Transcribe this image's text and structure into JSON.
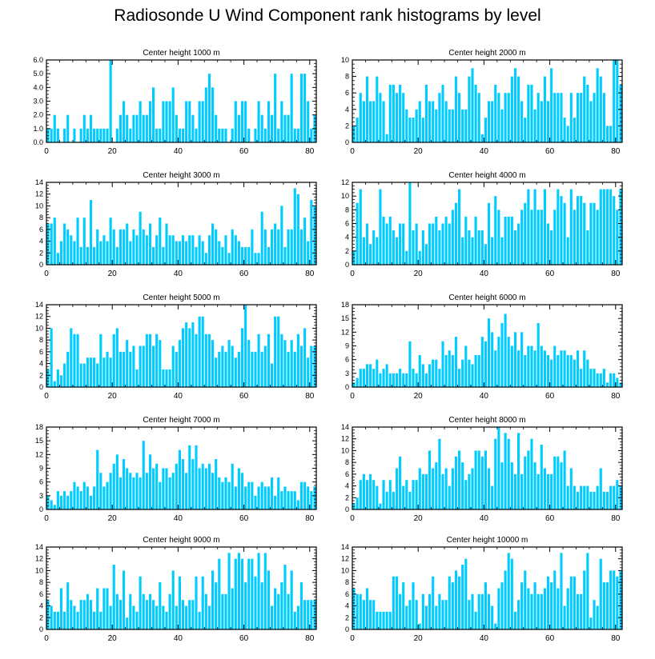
{
  "title": "Radiosonde U Wind Component rank histograms by level",
  "colors": {
    "bar": "#00ccff",
    "axis": "#000000",
    "background": "#ffffff"
  },
  "chart_data": [
    {
      "type": "bar",
      "title": "Center height 1000 m",
      "xlim": [
        0,
        82
      ],
      "ylim": [
        0,
        6
      ],
      "yticks": [
        "0.0",
        "1.0",
        "2.0",
        "3.0",
        "4.0",
        "5.0",
        "6.0"
      ],
      "xticks": [
        "0",
        "20",
        "40",
        "60",
        "80"
      ],
      "values": [
        1,
        1,
        2,
        1,
        0,
        1,
        2,
        0,
        1,
        0,
        1,
        2,
        1,
        2,
        1,
        1,
        1,
        1,
        1,
        6,
        0,
        1,
        2,
        3,
        2,
        1,
        2,
        2,
        3,
        2,
        2,
        3,
        4,
        1,
        1,
        3,
        3,
        3,
        4,
        2,
        1,
        1,
        3,
        3,
        2,
        1,
        3,
        3,
        4,
        5,
        4,
        2,
        1,
        1,
        1,
        0,
        1,
        3,
        2,
        3,
        3,
        1,
        0,
        1,
        3,
        2,
        1,
        3,
        2,
        5,
        1,
        3,
        2,
        2,
        5,
        1,
        1,
        5,
        5,
        3,
        1,
        2
      ]
    },
    {
      "type": "bar",
      "title": "Center height 2000 m",
      "xlim": [
        0,
        82
      ],
      "ylim": [
        0,
        10
      ],
      "yticks": [
        "0",
        "2",
        "4",
        "6",
        "8",
        "10"
      ],
      "xticks": [
        "0",
        "20",
        "40",
        "60",
        "80"
      ],
      "values": [
        2,
        3,
        6,
        5,
        8,
        5,
        5,
        8,
        6,
        5,
        1,
        7,
        7,
        6,
        7,
        6,
        4,
        3,
        3,
        4,
        5,
        3,
        7,
        5,
        5,
        4,
        6,
        7,
        5,
        4,
        4,
        8,
        6,
        4,
        4,
        8,
        9,
        7,
        6,
        1,
        3,
        5,
        5,
        7,
        6,
        4,
        6,
        6,
        8,
        9,
        8,
        5,
        3,
        7,
        7,
        4,
        6,
        5,
        8,
        5,
        9,
        6,
        6,
        6,
        3,
        2,
        6,
        3,
        6,
        6,
        8,
        7,
        5,
        6,
        9,
        8,
        6,
        2,
        2,
        10,
        10,
        7
      ]
    },
    {
      "type": "bar",
      "title": "Center height 3000 m",
      "xlim": [
        0,
        82
      ],
      "ylim": [
        0,
        14
      ],
      "yticks": [
        "0",
        "2",
        "4",
        "6",
        "8",
        "10",
        "12",
        "14"
      ],
      "xticks": [
        "0",
        "20",
        "40",
        "60",
        "80"
      ],
      "values": [
        7,
        7,
        8,
        2,
        4,
        7,
        6,
        5,
        4,
        8,
        3,
        8,
        3,
        11,
        3,
        6,
        4,
        5,
        4,
        8,
        6,
        3,
        6,
        6,
        7,
        4,
        6,
        5,
        9,
        6,
        5,
        7,
        3,
        5,
        8,
        3,
        7,
        5,
        5,
        4,
        4,
        5,
        4,
        5,
        5,
        3,
        5,
        4,
        2,
        5,
        7,
        6,
        4,
        3,
        5,
        2,
        6,
        5,
        4,
        3,
        3,
        3,
        6,
        2,
        2,
        9,
        6,
        3,
        6,
        7,
        6,
        10,
        3,
        6,
        6,
        13,
        12,
        6,
        8,
        4,
        11,
        10
      ]
    },
    {
      "type": "bar",
      "title": "Center height 4000 m",
      "xlim": [
        0,
        82
      ],
      "ylim": [
        0,
        12
      ],
      "yticks": [
        "0",
        "2",
        "4",
        "6",
        "8",
        "10",
        "12"
      ],
      "xticks": [
        "0",
        "20",
        "40",
        "60",
        "80"
      ],
      "values": [
        2,
        9,
        11,
        4,
        6,
        3,
        5,
        4,
        11,
        7,
        6,
        7,
        5,
        4,
        6,
        6,
        2,
        12,
        5,
        6,
        2,
        5,
        3,
        6,
        6,
        7,
        5,
        6,
        7,
        6,
        8,
        9,
        11,
        4,
        7,
        5,
        4,
        7,
        5,
        5,
        3,
        9,
        4,
        10,
        8,
        4,
        7,
        7,
        7,
        5,
        6,
        8,
        9,
        11,
        8,
        11,
        8,
        8,
        11,
        6,
        5,
        8,
        11,
        10,
        9,
        4,
        11,
        8,
        10,
        10,
        9,
        5,
        9,
        9,
        8,
        11,
        11,
        11,
        11,
        10,
        8,
        11
      ]
    },
    {
      "type": "bar",
      "title": "Center height 5000 m",
      "xlim": [
        0,
        82
      ],
      "ylim": [
        0,
        14
      ],
      "yticks": [
        "0",
        "2",
        "4",
        "6",
        "8",
        "10",
        "12",
        "14"
      ],
      "xticks": [
        "0",
        "20",
        "40",
        "60",
        "80"
      ],
      "values": [
        3,
        10,
        1,
        3,
        2,
        4,
        6,
        10,
        9,
        9,
        4,
        4,
        5,
        5,
        5,
        4,
        9,
        5,
        6,
        5,
        9,
        10,
        6,
        6,
        8,
        6,
        7,
        3,
        7,
        7,
        9,
        9,
        7,
        9,
        8,
        3,
        3,
        3,
        7,
        6,
        8,
        10,
        11,
        10,
        11,
        9,
        12,
        12,
        9,
        9,
        8,
        5,
        6,
        7,
        6,
        8,
        7,
        5,
        6,
        10,
        14,
        8,
        6,
        6,
        9,
        6,
        7,
        9,
        4,
        12,
        12,
        9,
        8,
        6,
        8,
        6,
        9,
        7,
        10,
        5,
        7,
        7
      ]
    },
    {
      "type": "bar",
      "title": "Center height 6000 m",
      "xlim": [
        0,
        82
      ],
      "ylim": [
        0,
        18
      ],
      "yticks": [
        "0",
        "3",
        "6",
        "9",
        "12",
        "15",
        "18"
      ],
      "xticks": [
        "0",
        "20",
        "40",
        "60",
        "80"
      ],
      "values": [
        1,
        2,
        4,
        4,
        5,
        5,
        4,
        6,
        3,
        4,
        5,
        3,
        3,
        3,
        4,
        3,
        3,
        10,
        4,
        3,
        7,
        5,
        3,
        5,
        6,
        6,
        4,
        10,
        7,
        8,
        7,
        11,
        4,
        6,
        9,
        6,
        5,
        7,
        7,
        11,
        10,
        15,
        12,
        8,
        11,
        14,
        16,
        11,
        9,
        12,
        8,
        12,
        7,
        9,
        9,
        8,
        14,
        9,
        8,
        7,
        6,
        9,
        7,
        8,
        8,
        7,
        7,
        6,
        8,
        4,
        8,
        6,
        4,
        4,
        3,
        3,
        4,
        1,
        3,
        3,
        2,
        1
      ]
    },
    {
      "type": "bar",
      "title": "Center height 7000 m",
      "xlim": [
        0,
        82
      ],
      "ylim": [
        0,
        18
      ],
      "yticks": [
        "0",
        "3",
        "6",
        "9",
        "12",
        "15",
        "18"
      ],
      "xticks": [
        "0",
        "20",
        "40",
        "60",
        "80"
      ],
      "values": [
        3,
        2,
        1,
        4,
        3,
        4,
        3,
        4,
        6,
        5,
        4,
        6,
        5,
        3,
        5,
        13,
        8,
        5,
        6,
        8,
        10,
        12,
        7,
        11,
        9,
        8,
        7,
        8,
        7,
        15,
        8,
        12,
        9,
        10,
        6,
        9,
        9,
        7,
        8,
        10,
        13,
        11,
        8,
        14,
        11,
        14,
        9,
        10,
        9,
        10,
        8,
        11,
        7,
        6,
        7,
        6,
        10,
        5,
        9,
        8,
        5,
        6,
        6,
        3,
        5,
        6,
        5,
        5,
        7,
        3,
        7,
        4,
        5,
        4,
        4,
        4,
        2,
        6,
        6,
        5,
        4,
        5
      ]
    },
    {
      "type": "bar",
      "title": "Center height 8000 m",
      "xlim": [
        0,
        82
      ],
      "ylim": [
        0,
        14
      ],
      "yticks": [
        "0",
        "2",
        "4",
        "6",
        "8",
        "10",
        "12",
        "14"
      ],
      "xticks": [
        "0",
        "20",
        "40",
        "60",
        "80"
      ],
      "values": [
        1,
        2,
        5,
        6,
        5,
        6,
        5,
        4,
        1,
        5,
        3,
        5,
        3,
        7,
        9,
        4,
        5,
        3,
        5,
        5,
        7,
        6,
        6,
        10,
        7,
        8,
        12,
        6,
        7,
        4,
        7,
        9,
        10,
        8,
        5,
        6,
        7,
        10,
        10,
        9,
        10,
        7,
        4,
        12,
        14,
        8,
        13,
        12,
        8,
        6,
        13,
        6,
        9,
        10,
        12,
        8,
        6,
        11,
        7,
        6,
        6,
        9,
        9,
        8,
        10,
        4,
        7,
        4,
        3,
        4,
        4,
        4,
        3,
        3,
        4,
        7,
        3,
        3,
        4,
        4,
        5,
        4
      ]
    },
    {
      "type": "bar",
      "title": "Center height 9000 m",
      "xlim": [
        0,
        82
      ],
      "ylim": [
        0,
        14
      ],
      "yticks": [
        "0",
        "2",
        "4",
        "6",
        "8",
        "10",
        "12",
        "14"
      ],
      "xticks": [
        "0",
        "20",
        "40",
        "60",
        "80"
      ],
      "values": [
        5,
        4,
        3,
        3,
        7,
        3,
        8,
        5,
        4,
        3,
        5,
        5,
        6,
        5,
        3,
        7,
        3,
        7,
        7,
        4,
        11,
        6,
        5,
        10,
        2,
        6,
        4,
        3,
        9,
        6,
        5,
        6,
        5,
        4,
        8,
        4,
        3,
        6,
        10,
        4,
        9,
        5,
        4,
        5,
        5,
        9,
        3,
        9,
        6,
        4,
        10,
        8,
        12,
        6,
        6,
        13,
        7,
        12,
        13,
        12,
        8,
        12,
        12,
        9,
        13,
        8,
        13,
        10,
        4,
        7,
        6,
        8,
        11,
        6,
        10,
        3,
        4,
        8,
        5,
        5,
        5,
        5
      ]
    },
    {
      "type": "bar",
      "title": "Center height 10000 m",
      "xlim": [
        0,
        82
      ],
      "ylim": [
        0,
        14
      ],
      "yticks": [
        "0",
        "2",
        "4",
        "6",
        "8",
        "10",
        "12",
        "14"
      ],
      "xticks": [
        "0",
        "20",
        "40",
        "60",
        "80"
      ],
      "values": [
        7,
        6,
        6,
        5,
        7,
        5,
        5,
        3,
        3,
        3,
        3,
        3,
        9,
        9,
        6,
        8,
        4,
        5,
        8,
        5,
        1,
        6,
        4,
        6,
        9,
        4,
        6,
        5,
        5,
        9,
        8,
        10,
        9,
        11,
        12,
        5,
        6,
        3,
        6,
        6,
        8,
        6,
        4,
        1,
        7,
        8,
        10,
        13,
        12,
        3,
        5,
        8,
        10,
        7,
        6,
        8,
        6,
        6,
        7,
        9,
        8,
        10,
        7,
        13,
        4,
        7,
        9,
        9,
        6,
        6,
        10,
        13,
        2,
        5,
        4,
        12,
        8,
        8,
        10,
        10,
        9,
        10
      ]
    }
  ]
}
